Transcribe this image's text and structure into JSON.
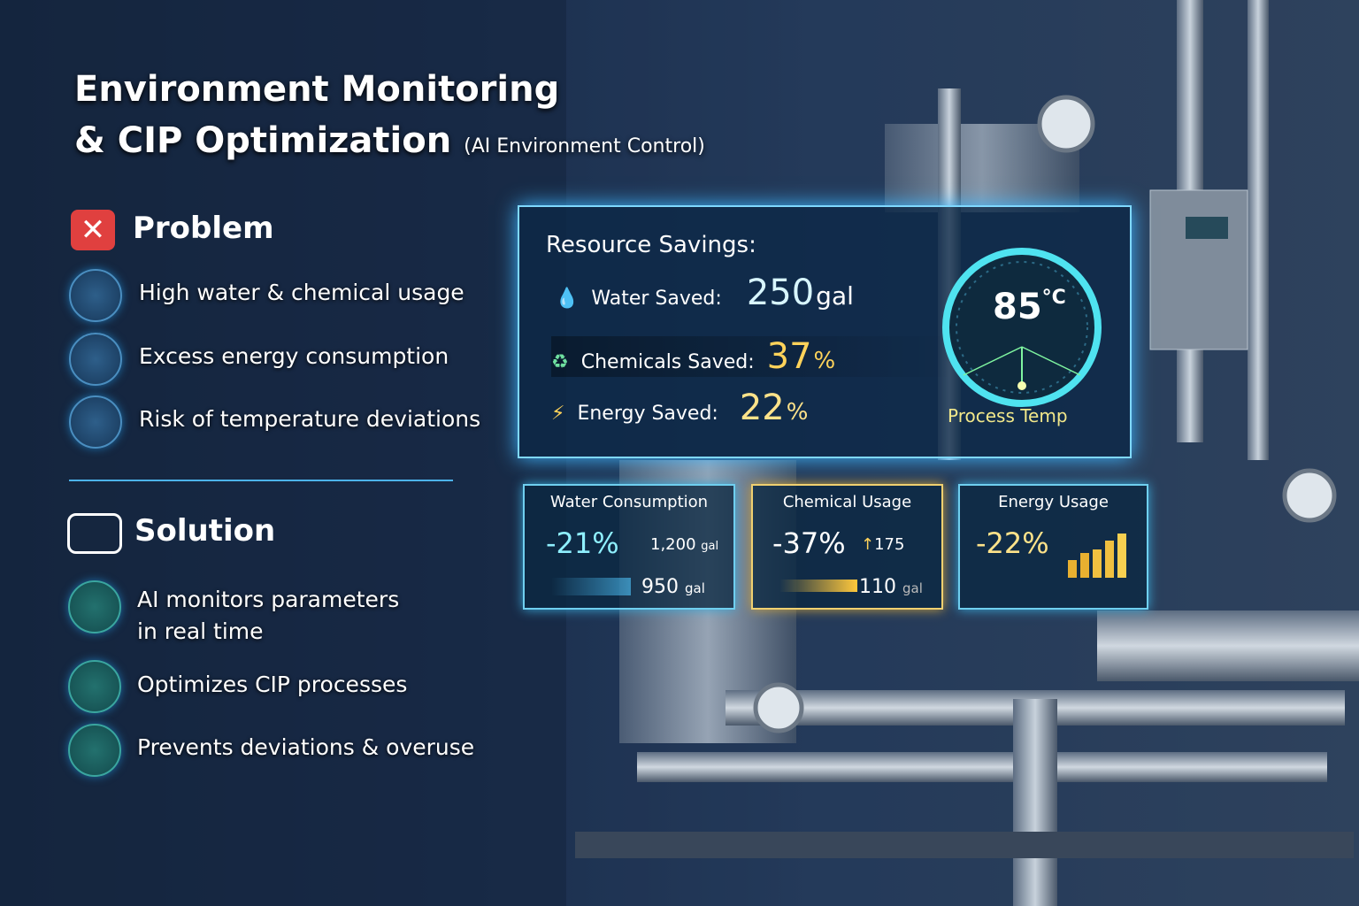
{
  "header": {
    "title_line1": "Environment Monitoring",
    "title_line2": "& CIP Optimization",
    "subtitle": "(AI Environment Control)"
  },
  "problem": {
    "heading": "Problem",
    "items": [
      "High water & chemical usage",
      "Excess energy consumption",
      "Risk of temperature deviations"
    ]
  },
  "solution": {
    "heading": "Solution",
    "items": [
      "AI monitors parameters in real time",
      "Optimizes CIP processes",
      "Prevents deviations & overuse"
    ]
  },
  "savings_panel": {
    "title": "Resource Savings:",
    "rows": [
      {
        "label": "Water Saved:",
        "value": "250",
        "unit": "gal"
      },
      {
        "label": "Chemicals Saved:",
        "value": "37",
        "unit": "%"
      },
      {
        "label": "Energy Saved:",
        "value": "22",
        "unit": "%"
      }
    ],
    "gauge": {
      "value": "85",
      "unit": "°C",
      "label": "Process Temp"
    }
  },
  "cards": [
    {
      "title": "Water Consumption",
      "change": "-21%",
      "secondary": {
        "value": "1,200",
        "unit": "gal"
      },
      "total": {
        "value": "950",
        "unit": "gal"
      }
    },
    {
      "title": "Chemical Usage",
      "change": "-37%",
      "secondary": {
        "value": "175"
      },
      "total": {
        "value": "110",
        "unit": "gal"
      }
    },
    {
      "title": "Energy Usage",
      "change": "-22%"
    }
  ]
}
